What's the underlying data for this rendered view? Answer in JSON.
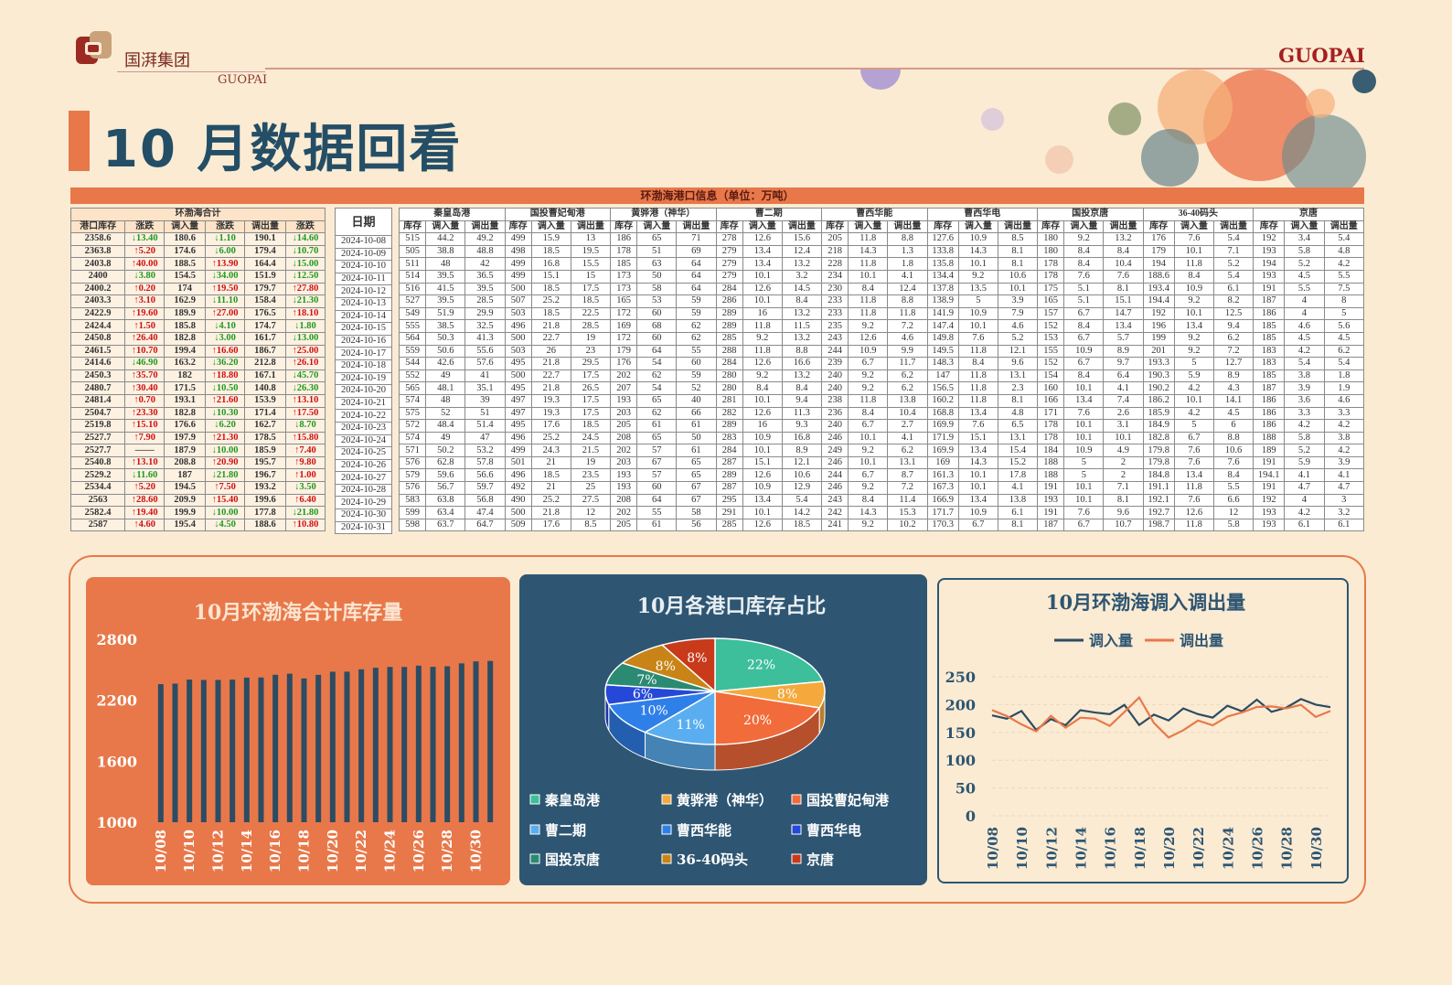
{
  "brand": {
    "name_cn": "国湃集团",
    "name_en": "GUOPAI",
    "header_right": "GUOPAI"
  },
  "page_title": "10 月数据回看",
  "colors": {
    "accent": "#e8784a",
    "navy": "#234e66",
    "chart_bar": "#2c4c63",
    "line_in": "#2c4c63",
    "line_out": "#e8784a"
  },
  "table": {
    "title": "环渤海港口信息（单位：万吨）",
    "summary_group": "环渤海合计",
    "summary_headers": [
      "港口库存",
      "涨跌",
      "调入量",
      "涨跌",
      "调出量",
      "涨跌"
    ],
    "date_header": "日期",
    "ports": [
      "秦皇岛港",
      "国投曹妃甸港",
      "黄骅港（神华）",
      "曹二期",
      "曹西华能",
      "曹西华电",
      "国投京唐",
      "36-40码头",
      "京唐"
    ],
    "sub_headers": [
      "库存",
      "调入量",
      "调出量"
    ],
    "summary_rows": [
      [
        "2358.6",
        "↓13.40",
        "180.6",
        "↓1.10",
        "190.1",
        "↓14.60"
      ],
      [
        "2363.8",
        "↑5.20",
        "174.6",
        "↓6.00",
        "179.4",
        "↓10.70"
      ],
      [
        "2403.8",
        "↑40.00",
        "188.5",
        "↑13.90",
        "164.4",
        "↓15.00"
      ],
      [
        "2400",
        "↓3.80",
        "154.5",
        "↓34.00",
        "151.9",
        "↓12.50"
      ],
      [
        "2400.2",
        "↑0.20",
        "174",
        "↑19.50",
        "179.7",
        "↑27.80"
      ],
      [
        "2403.3",
        "↑3.10",
        "162.9",
        "↓11.10",
        "158.4",
        "↓21.30"
      ],
      [
        "2422.9",
        "↑19.60",
        "189.9",
        "↑27.00",
        "176.5",
        "↑18.10"
      ],
      [
        "2424.4",
        "↑1.50",
        "185.8",
        "↓4.10",
        "174.7",
        "↓1.80"
      ],
      [
        "2450.8",
        "↑26.40",
        "182.8",
        "↓3.00",
        "161.7",
        "↓13.00"
      ],
      [
        "2461.5",
        "↑10.70",
        "199.4",
        "↑16.60",
        "186.7",
        "↑25.00"
      ],
      [
        "2414.6",
        "↓46.90",
        "163.2",
        "↓36.20",
        "212.8",
        "↑26.10"
      ],
      [
        "2450.3",
        "↑35.70",
        "182",
        "↑18.80",
        "167.1",
        "↓45.70"
      ],
      [
        "2480.7",
        "↑30.40",
        "171.5",
        "↓10.50",
        "140.8",
        "↓26.30"
      ],
      [
        "2481.4",
        "↑0.70",
        "193.1",
        "↑21.60",
        "153.9",
        "↑13.10"
      ],
      [
        "2504.7",
        "↑23.30",
        "182.8",
        "↓10.30",
        "171.4",
        "↑17.50"
      ],
      [
        "2519.8",
        "↑15.10",
        "176.6",
        "↓6.20",
        "162.7",
        "↓8.70"
      ],
      [
        "2527.7",
        "↑7.90",
        "197.9",
        "↑21.30",
        "178.5",
        "↑15.80"
      ],
      [
        "2527.7",
        "——",
        "187.9",
        "↓10.00",
        "185.9",
        "↑7.40"
      ],
      [
        "2540.8",
        "↑13.10",
        "208.8",
        "↑20.90",
        "195.7",
        "↑9.80"
      ],
      [
        "2529.2",
        "↓11.60",
        "187",
        "↓21.80",
        "196.7",
        "↑1.00"
      ],
      [
        "2534.4",
        "↑5.20",
        "194.5",
        "↑7.50",
        "193.2",
        "↓3.50"
      ],
      [
        "2563",
        "↑28.60",
        "209.9",
        "↑15.40",
        "199.6",
        "↑6.40"
      ],
      [
        "2582.4",
        "↑19.40",
        "199.9",
        "↓10.00",
        "177.8",
        "↓21.80"
      ],
      [
        "2587",
        "↑4.60",
        "195.4",
        "↓4.50",
        "188.6",
        "↑10.80"
      ]
    ],
    "dates": [
      "2024-10-08",
      "2024-10-09",
      "2024-10-10",
      "2024-10-11",
      "2024-10-12",
      "2024-10-13",
      "2024-10-14",
      "2024-10-15",
      "2024-10-16",
      "2024-10-17",
      "2024-10-18",
      "2024-10-19",
      "2024-10-20",
      "2024-10-21",
      "2024-10-22",
      "2024-10-23",
      "2024-10-24",
      "2024-10-25",
      "2024-10-26",
      "2024-10-27",
      "2024-10-28",
      "2024-10-29",
      "2024-10-30",
      "2024-10-31"
    ],
    "port_rows": [
      [
        "515",
        "44.2",
        "49.2",
        "499",
        "15.9",
        "13",
        "186",
        "65",
        "71",
        "278",
        "12.6",
        "15.6",
        "205",
        "11.8",
        "8.8",
        "127.6",
        "10.9",
        "8.5",
        "180",
        "9.2",
        "13.2",
        "176",
        "7.6",
        "5.4",
        "192",
        "3.4",
        "5.4"
      ],
      [
        "505",
        "38.8",
        "48.8",
        "498",
        "18.5",
        "19.5",
        "178",
        "51",
        "69",
        "279",
        "13.4",
        "12.4",
        "218",
        "14.3",
        "1.3",
        "133.8",
        "14.3",
        "8.1",
        "180",
        "8.4",
        "8.4",
        "179",
        "10.1",
        "7.1",
        "193",
        "5.8",
        "4.8"
      ],
      [
        "511",
        "48",
        "42",
        "499",
        "16.8",
        "15.5",
        "185",
        "63",
        "64",
        "279",
        "13.4",
        "13.2",
        "228",
        "11.8",
        "1.8",
        "135.8",
        "10.1",
        "8.1",
        "178",
        "8.4",
        "10.4",
        "194",
        "11.8",
        "5.2",
        "194",
        "5.2",
        "4.2"
      ],
      [
        "514",
        "39.5",
        "36.5",
        "499",
        "15.1",
        "15",
        "173",
        "50",
        "64",
        "279",
        "10.1",
        "3.2",
        "234",
        "10.1",
        "4.1",
        "134.4",
        "9.2",
        "10.6",
        "178",
        "7.6",
        "7.6",
        "188.6",
        "8.4",
        "5.4",
        "193",
        "4.5",
        "5.5"
      ],
      [
        "516",
        "41.5",
        "39.5",
        "500",
        "18.5",
        "17.5",
        "173",
        "58",
        "64",
        "284",
        "12.6",
        "14.5",
        "230",
        "8.4",
        "12.4",
        "137.8",
        "13.5",
        "10.1",
        "175",
        "5.1",
        "8.1",
        "193.4",
        "10.9",
        "6.1",
        "191",
        "5.5",
        "7.5"
      ],
      [
        "527",
        "39.5",
        "28.5",
        "507",
        "25.2",
        "18.5",
        "165",
        "53",
        "59",
        "286",
        "10.1",
        "8.4",
        "233",
        "11.8",
        "8.8",
        "138.9",
        "5",
        "3.9",
        "165",
        "5.1",
        "15.1",
        "194.4",
        "9.2",
        "8.2",
        "187",
        "4",
        "8"
      ],
      [
        "549",
        "51.9",
        "29.9",
        "503",
        "18.5",
        "22.5",
        "172",
        "60",
        "59",
        "289",
        "16",
        "13.2",
        "233",
        "11.8",
        "11.8",
        "141.9",
        "10.9",
        "7.9",
        "157",
        "6.7",
        "14.7",
        "192",
        "10.1",
        "12.5",
        "186",
        "4",
        "5"
      ],
      [
        "555",
        "38.5",
        "32.5",
        "496",
        "21.8",
        "28.5",
        "169",
        "68",
        "62",
        "289",
        "11.8",
        "11.5",
        "235",
        "9.2",
        "7.2",
        "147.4",
        "10.1",
        "4.6",
        "152",
        "8.4",
        "13.4",
        "196",
        "13.4",
        "9.4",
        "185",
        "4.6",
        "5.6"
      ],
      [
        "564",
        "50.3",
        "41.3",
        "500",
        "22.7",
        "19",
        "172",
        "60",
        "62",
        "285",
        "9.2",
        "13.2",
        "243",
        "12.6",
        "4.6",
        "149.8",
        "7.6",
        "5.2",
        "153",
        "6.7",
        "5.7",
        "199",
        "9.2",
        "6.2",
        "185",
        "4.5",
        "4.5"
      ],
      [
        "559",
        "50.6",
        "55.6",
        "503",
        "26",
        "23",
        "179",
        "64",
        "55",
        "288",
        "11.8",
        "8.8",
        "244",
        "10.9",
        "9.9",
        "149.5",
        "11.8",
        "12.1",
        "155",
        "10.9",
        "8.9",
        "201",
        "9.2",
        "7.2",
        "183",
        "4.2",
        "6.2"
      ],
      [
        "544",
        "42.6",
        "57.6",
        "495",
        "21.8",
        "29.5",
        "176",
        "54",
        "60",
        "284",
        "12.6",
        "16.6",
        "239",
        "6.7",
        "11.7",
        "148.3",
        "8.4",
        "9.6",
        "152",
        "6.7",
        "9.7",
        "193.3",
        "5",
        "12.7",
        "183",
        "5.4",
        "5.4"
      ],
      [
        "552",
        "49",
        "41",
        "500",
        "22.7",
        "17.5",
        "202",
        "62",
        "59",
        "280",
        "9.2",
        "13.2",
        "240",
        "9.2",
        "6.2",
        "147",
        "11.8",
        "13.1",
        "154",
        "8.4",
        "6.4",
        "190.3",
        "5.9",
        "8.9",
        "185",
        "3.8",
        "1.8"
      ],
      [
        "565",
        "48.1",
        "35.1",
        "495",
        "21.8",
        "26.5",
        "207",
        "54",
        "52",
        "280",
        "8.4",
        "8.4",
        "240",
        "9.2",
        "6.2",
        "156.5",
        "11.8",
        "2.3",
        "160",
        "10.1",
        "4.1",
        "190.2",
        "4.2",
        "4.3",
        "187",
        "3.9",
        "1.9"
      ],
      [
        "574",
        "48",
        "39",
        "497",
        "19.3",
        "17.5",
        "193",
        "65",
        "40",
        "281",
        "10.1",
        "9.4",
        "238",
        "11.8",
        "13.8",
        "160.2",
        "11.8",
        "8.1",
        "166",
        "13.4",
        "7.4",
        "186.2",
        "10.1",
        "14.1",
        "186",
        "3.6",
        "4.6"
      ],
      [
        "575",
        "52",
        "51",
        "497",
        "19.3",
        "17.5",
        "203",
        "62",
        "66",
        "282",
        "12.6",
        "11.3",
        "236",
        "8.4",
        "10.4",
        "168.8",
        "13.4",
        "4.8",
        "171",
        "7.6",
        "2.6",
        "185.9",
        "4.2",
        "4.5",
        "186",
        "3.3",
        "3.3"
      ],
      [
        "572",
        "48.4",
        "51.4",
        "495",
        "17.6",
        "18.5",
        "205",
        "61",
        "61",
        "289",
        "16",
        "9.3",
        "240",
        "6.7",
        "2.7",
        "169.9",
        "7.6",
        "6.5",
        "178",
        "10.1",
        "3.1",
        "184.9",
        "5",
        "6",
        "186",
        "4.2",
        "4.2"
      ],
      [
        "574",
        "49",
        "47",
        "496",
        "25.2",
        "24.5",
        "208",
        "65",
        "50",
        "283",
        "10.9",
        "16.8",
        "246",
        "10.1",
        "4.1",
        "171.9",
        "15.1",
        "13.1",
        "178",
        "10.1",
        "10.1",
        "182.8",
        "6.7",
        "8.8",
        "188",
        "5.8",
        "3.8"
      ],
      [
        "571",
        "50.2",
        "53.2",
        "499",
        "24.3",
        "21.5",
        "202",
        "57",
        "61",
        "284",
        "10.1",
        "8.9",
        "249",
        "9.2",
        "6.2",
        "169.9",
        "13.4",
        "15.4",
        "184",
        "10.9",
        "4.9",
        "179.8",
        "7.6",
        "10.6",
        "189",
        "5.2",
        "4.2"
      ],
      [
        "576",
        "62.8",
        "57.8",
        "501",
        "21",
        "19",
        "203",
        "67",
        "65",
        "287",
        "15.1",
        "12.1",
        "246",
        "10.1",
        "13.1",
        "169",
        "14.3",
        "15.2",
        "188",
        "5",
        "2",
        "179.8",
        "7.6",
        "7.6",
        "191",
        "5.9",
        "3.9"
      ],
      [
        "579",
        "59.6",
        "56.6",
        "496",
        "18.5",
        "23.5",
        "193",
        "57",
        "65",
        "289",
        "12.6",
        "10.6",
        "244",
        "6.7",
        "8.7",
        "161.3",
        "10.1",
        "17.8",
        "188",
        "5",
        "2",
        "184.8",
        "13.4",
        "8.4",
        "194.1",
        "4.1",
        "4.1"
      ],
      [
        "576",
        "56.7",
        "59.7",
        "492",
        "21",
        "25",
        "193",
        "60",
        "67",
        "287",
        "10.9",
        "12.9",
        "246",
        "9.2",
        "7.2",
        "167.3",
        "10.1",
        "4.1",
        "191",
        "10.1",
        "7.1",
        "191.1",
        "11.8",
        "5.5",
        "191",
        "4.7",
        "4.7"
      ],
      [
        "583",
        "63.8",
        "56.8",
        "490",
        "25.2",
        "27.5",
        "208",
        "64",
        "67",
        "295",
        "13.4",
        "5.4",
        "243",
        "8.4",
        "11.4",
        "166.9",
        "13.4",
        "13.8",
        "193",
        "10.1",
        "8.1",
        "192.1",
        "7.6",
        "6.6",
        "192",
        "4",
        "3"
      ],
      [
        "599",
        "63.4",
        "47.4",
        "500",
        "21.8",
        "12",
        "202",
        "55",
        "58",
        "291",
        "10.1",
        "14.2",
        "242",
        "14.3",
        "15.3",
        "171.7",
        "10.9",
        "6.1",
        "191",
        "7.6",
        "9.6",
        "192.7",
        "12.6",
        "12",
        "193",
        "4.2",
        "3.2"
      ],
      [
        "598",
        "63.7",
        "64.7",
        "509",
        "17.6",
        "8.5",
        "205",
        "61",
        "56",
        "285",
        "12.6",
        "18.5",
        "241",
        "9.2",
        "10.2",
        "170.3",
        "6.7",
        "8.1",
        "187",
        "6.7",
        "10.7",
        "198.7",
        "11.8",
        "5.8",
        "193",
        "6.1",
        "6.1"
      ]
    ]
  },
  "chart_data": [
    {
      "type": "bar",
      "title": "10月环渤海合计库存量",
      "categories": [
        "10/08",
        "10/09",
        "10/10",
        "10/11",
        "10/12",
        "10/13",
        "10/14",
        "10/15",
        "10/16",
        "10/17",
        "10/18",
        "10/19",
        "10/20",
        "10/21",
        "10/22",
        "10/23",
        "10/24",
        "10/25",
        "10/26",
        "10/27",
        "10/28",
        "10/29",
        "10/30",
        "10/31"
      ],
      "x_tick_labels": [
        "10/08",
        "10/10",
        "10/12",
        "10/14",
        "10/16",
        "10/18",
        "10/20",
        "10/22",
        "10/24",
        "10/26",
        "10/28",
        "10/30"
      ],
      "values": [
        2358.6,
        2363.8,
        2403.8,
        2400,
        2400.2,
        2403.3,
        2422.9,
        2424.4,
        2450.8,
        2461.5,
        2414.6,
        2450.3,
        2480.7,
        2481.4,
        2504.7,
        2519.8,
        2527.7,
        2527.7,
        2540.8,
        2529.2,
        2534.4,
        2563,
        2582.4,
        2587
      ],
      "ylim": [
        1000,
        2800
      ],
      "yticks": [
        1000,
        1600,
        2200,
        2800
      ]
    },
    {
      "type": "pie",
      "title": "10月各港口库存占比",
      "slices": [
        {
          "name": "秦皇岛港",
          "value": 22,
          "label": "22%",
          "color": "#3dbf9c"
        },
        {
          "name": "黄骅港（神华）",
          "value": 8,
          "label": "8%",
          "color": "#f5a93c"
        },
        {
          "name": "国投曹妃甸港",
          "value": 20,
          "label": "20%",
          "color": "#f26b3a"
        },
        {
          "name": "曹二期",
          "value": 11,
          "label": "11%",
          "color": "#5aaef0"
        },
        {
          "name": "曹西华能",
          "value": 10,
          "label": "10%",
          "color": "#2f7fe8"
        },
        {
          "name": "曹西华电",
          "value": 6,
          "label": "6%",
          "color": "#2548d8"
        },
        {
          "name": "国投京唐",
          "value": 7,
          "label": "7%",
          "color": "#2a8a72"
        },
        {
          "name": "36-40码头",
          "value": 8,
          "label": "8%",
          "color": "#c88417"
        },
        {
          "name": "京唐",
          "value": 8,
          "label": "8%",
          "color": "#c83a1a"
        }
      ]
    },
    {
      "type": "line",
      "title": "10月环渤海调入调出量",
      "categories": [
        "10/08",
        "10/09",
        "10/10",
        "10/11",
        "10/12",
        "10/13",
        "10/14",
        "10/15",
        "10/16",
        "10/17",
        "10/18",
        "10/19",
        "10/20",
        "10/21",
        "10/22",
        "10/23",
        "10/24",
        "10/25",
        "10/26",
        "10/27",
        "10/28",
        "10/29",
        "10/30",
        "10/31"
      ],
      "x_tick_labels": [
        "10/08",
        "10/10",
        "10/12",
        "10/14",
        "10/16",
        "10/18",
        "10/20",
        "10/22",
        "10/24",
        "10/26",
        "10/28",
        "10/30"
      ],
      "series": [
        {
          "name": "调入量",
          "color": "#2c4c63",
          "values": [
            180.6,
            174.6,
            188.5,
            154.5,
            174,
            162.9,
            189.9,
            185.8,
            182.8,
            199.4,
            163.2,
            182,
            171.5,
            193.1,
            182.8,
            176.6,
            197.9,
            187.9,
            208.8,
            187,
            194.5,
            209.9,
            199.9,
            195.4
          ]
        },
        {
          "name": "调出量",
          "color": "#e8784a",
          "values": [
            190.1,
            179.4,
            164.4,
            151.9,
            179.7,
            158.4,
            176.5,
            174.7,
            161.7,
            186.7,
            212.8,
            167.1,
            140.8,
            153.9,
            171.4,
            162.7,
            178.5,
            185.9,
            195.7,
            196.7,
            193.2,
            199.6,
            177.8,
            188.6
          ]
        }
      ],
      "ylim": [
        0,
        250
      ],
      "yticks": [
        0,
        50,
        100,
        150,
        200,
        250
      ]
    }
  ]
}
